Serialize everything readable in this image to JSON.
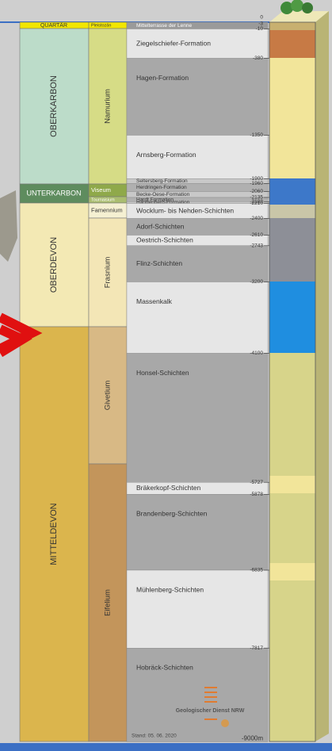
{
  "systems": [
    "QUARTÄR",
    "OBERKARBON",
    "UNTERKARBON",
    "OBERDEVON",
    "MITTELDEVON"
  ],
  "stages": [
    "Pleistozän",
    "Namurium",
    "Viseum",
    "Tournaisium",
    "Famennium",
    "Frasnium",
    "Givetium",
    "Eifelium"
  ],
  "formations": [
    "Mittelterrasse der Lenne",
    "Ziegelschiefer-Formation",
    "Hagen-Formation",
    "Arnsberg-Formation",
    "Seltersberg-Formation",
    "Herdringen-Formation",
    "Becke-Oese-Formation",
    "Hardt Formation",
    "Hangenberg-Formation",
    "Wocklum- bis Nehden-Schichten",
    "Adorf-Schichten",
    "Oestrich-Schichten",
    "Flinz-Schichten",
    "Massenkalk",
    "Honsel-Schichten",
    "Bräkerkopf-Schichten",
    "Brandenberg-Schichten",
    "Mühlenberg-Schichten",
    "Hobräck-Schichten"
  ],
  "depth_labels": [
    "0",
    "-3",
    "-10",
    "-380",
    "-1350",
    "-1900",
    "-1960",
    "-2060",
    "-2135",
    "-2188",
    "-2210",
    "-2400",
    "-2610",
    "-2743",
    "-3200",
    "-4100",
    "-5727",
    "-5878",
    "-6835",
    "-7817",
    "-9000m"
  ],
  "footer": {
    "publisher": "Geologischer Dienst NRW",
    "date": "Stand: 05. 06. 2020"
  }
}
